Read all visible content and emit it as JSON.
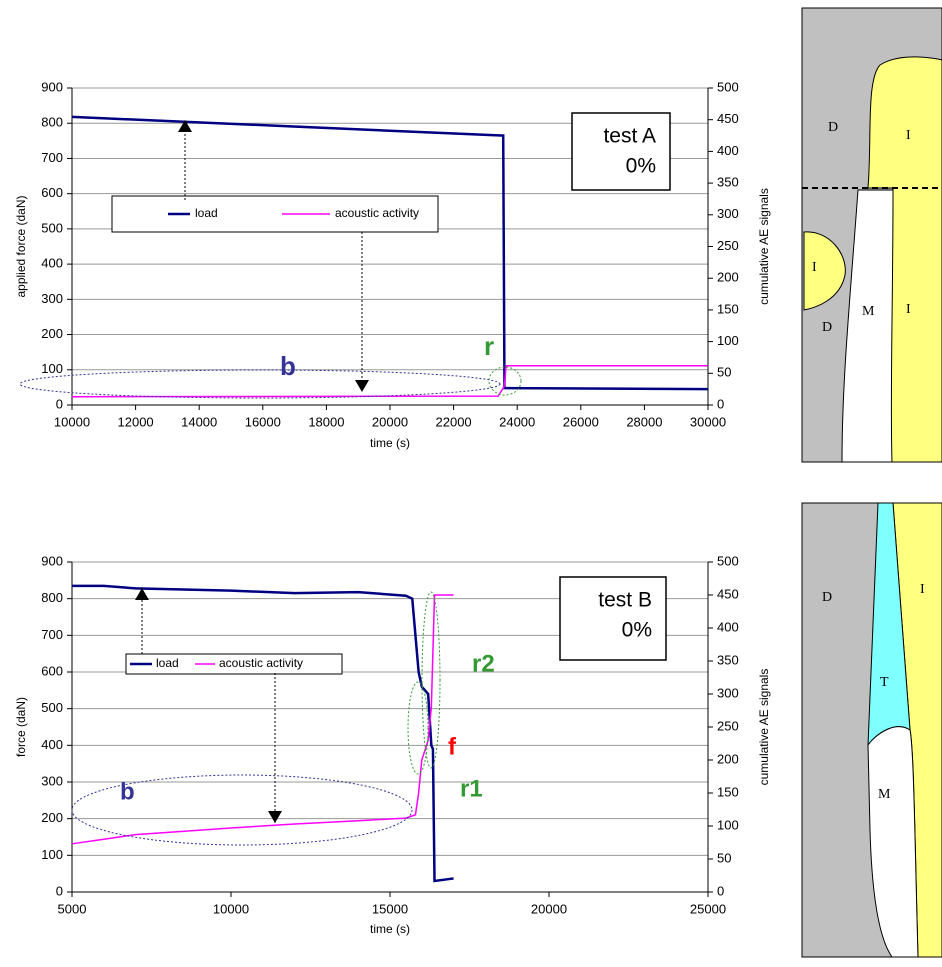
{
  "chart_data": [
    {
      "type": "line",
      "xlabel": "time (s)",
      "ylabel": "applied force (daN)",
      "y2label": "cumulative AE signals",
      "xlim": [
        10000,
        30000
      ],
      "xticks": [
        10000,
        12000,
        14000,
        16000,
        18000,
        20000,
        22000,
        24000,
        26000,
        28000,
        30000
      ],
      "ylim": [
        0,
        900
      ],
      "yticks": [
        0,
        100,
        200,
        300,
        400,
        500,
        600,
        700,
        800,
        900
      ],
      "y2lim": [
        0,
        500
      ],
      "y2ticks": [
        0,
        50,
        100,
        150,
        200,
        250,
        300,
        350,
        400,
        450,
        500
      ],
      "grid": true,
      "box_text": [
        "test A",
        "0%"
      ],
      "annotations": [
        {
          "text": "b",
          "color": "#333399"
        },
        {
          "text": "r",
          "color": "#339933"
        }
      ],
      "series": [
        {
          "name": "load",
          "color": "#000080",
          "x": [
            10000,
            23500,
            23560,
            23600,
            30000
          ],
          "values": [
            818,
            765,
            765,
            48,
            45
          ]
        },
        {
          "name": "acoustic activity",
          "color": "#ff00ff",
          "axis": "y2",
          "x": [
            10000,
            23400,
            23600,
            23650,
            30000
          ],
          "values": [
            13,
            14,
            30,
            62,
            62
          ]
        }
      ]
    },
    {
      "type": "line",
      "xlabel": "time (s)",
      "ylabel": "force (daN)",
      "y2label": "cumulative AE signals",
      "xlim": [
        5000,
        25000
      ],
      "xticks": [
        5000,
        10000,
        15000,
        20000,
        25000
      ],
      "ylim": [
        0,
        900
      ],
      "yticks": [
        0,
        100,
        200,
        300,
        400,
        500,
        600,
        700,
        800,
        900
      ],
      "y2lim": [
        0,
        500
      ],
      "y2ticks": [
        0,
        50,
        100,
        150,
        200,
        250,
        300,
        350,
        400,
        450,
        500
      ],
      "grid": true,
      "box_text": [
        "test B",
        "0%"
      ],
      "annotations": [
        {
          "text": "b",
          "color": "#333399"
        },
        {
          "text": "f",
          "color": "#ff0000"
        },
        {
          "text": "r1",
          "color": "#339933"
        },
        {
          "text": "r2",
          "color": "#339933"
        }
      ],
      "series": [
        {
          "name": "load",
          "color": "#000080",
          "x": [
            5000,
            6000,
            7000,
            10000,
            12000,
            14000,
            15500,
            15700,
            15800,
            15900,
            16000,
            16200,
            16300,
            16350,
            16400,
            17000
          ],
          "values": [
            835,
            835,
            828,
            822,
            815,
            818,
            808,
            800,
            700,
            600,
            560,
            540,
            400,
            390,
            30,
            37
          ]
        },
        {
          "name": "acoustic activity",
          "color": "#ff00ff",
          "axis": "y2",
          "x": [
            5000,
            6000,
            7000,
            10000,
            12000,
            14000,
            15500,
            15800,
            15900,
            16000,
            16200,
            16300,
            16400,
            17000
          ],
          "values": [
            73,
            80,
            87,
            97,
            103,
            108,
            112,
            117,
            150,
            200,
            230,
            280,
            450,
            450
          ]
        }
      ]
    }
  ],
  "diagrams": [
    {
      "labels": [
        "D",
        "I",
        "I",
        "M",
        "I",
        "D"
      ]
    },
    {
      "labels": [
        "D",
        "I",
        "T",
        "M"
      ]
    }
  ]
}
